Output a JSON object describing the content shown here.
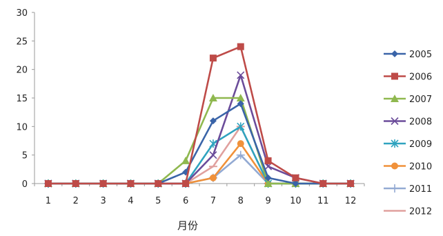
{
  "chart_data": {
    "type": "line",
    "title": "",
    "xlabel": "月份",
    "ylabel": "",
    "x": [
      1,
      2,
      3,
      4,
      5,
      6,
      7,
      8,
      9,
      10,
      11,
      12
    ],
    "ylim": [
      0,
      30
    ],
    "yticks": [
      0,
      5,
      10,
      15,
      20,
      25,
      30
    ],
    "grid": false,
    "legend": "right",
    "series": [
      {
        "name": "2005",
        "color": "#3a64a8",
        "marker": "diamond",
        "values": [
          0,
          0,
          0,
          0,
          0,
          2,
          11,
          14,
          1,
          0,
          0,
          0
        ]
      },
      {
        "name": "2006",
        "color": "#be4b48",
        "marker": "square",
        "values": [
          0,
          0,
          0,
          0,
          0,
          0,
          22,
          24,
          4,
          1,
          0,
          0
        ]
      },
      {
        "name": "2007",
        "color": "#8fb84f",
        "marker": "triangle",
        "values": [
          0,
          0,
          0,
          0,
          0,
          4,
          15,
          15,
          0,
          0,
          0,
          0
        ]
      },
      {
        "name": "2008",
        "color": "#6b4c9a",
        "marker": "x",
        "values": [
          0,
          0,
          0,
          0,
          0,
          0,
          5,
          19,
          3,
          1,
          0,
          0
        ]
      },
      {
        "name": "2009",
        "color": "#2fa3bf",
        "marker": "star",
        "values": [
          0,
          0,
          0,
          0,
          0,
          0,
          7,
          10,
          0,
          0,
          0,
          0
        ]
      },
      {
        "name": "2010",
        "color": "#f0913a",
        "marker": "circle",
        "values": [
          0,
          0,
          0,
          0,
          0,
          0,
          1,
          7,
          0,
          0,
          0,
          0
        ]
      },
      {
        "name": "2011",
        "color": "#93aad3",
        "marker": "plus",
        "values": [
          0,
          0,
          0,
          0,
          0,
          0,
          1,
          5,
          0,
          0,
          0,
          0
        ]
      },
      {
        "name": "2012",
        "color": "#e0a09e",
        "marker": "dash",
        "values": [
          0,
          0,
          0,
          0,
          0,
          0,
          3,
          10,
          0,
          0,
          0,
          0
        ]
      }
    ]
  }
}
